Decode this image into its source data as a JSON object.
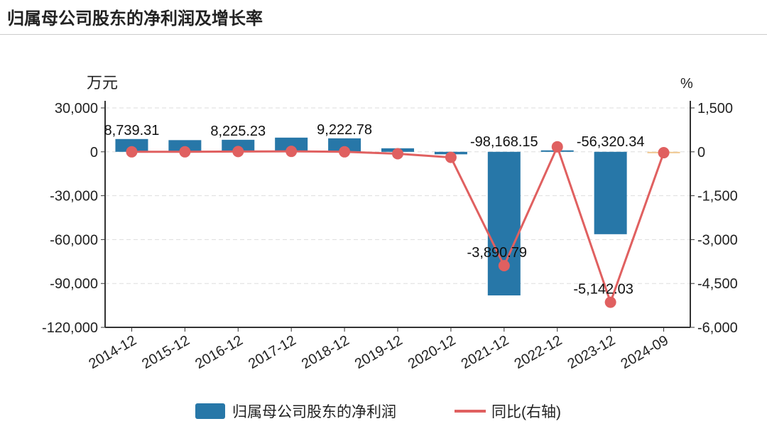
{
  "title": "归属母公司股东的净利润及增长率",
  "chart_data": {
    "type": "bar+line",
    "categories": [
      "2014-12",
      "2015-12",
      "2016-12",
      "2017-12",
      "2018-12",
      "2019-12",
      "2020-12",
      "2021-12",
      "2022-12",
      "2023-12",
      "2024-09"
    ],
    "left_unit": "万元",
    "right_unit": "%",
    "left_ylim": [
      -120000,
      30000
    ],
    "left_ticks": [
      "30,000",
      "0",
      "-30,000",
      "-60,000",
      "-90,000",
      "-120,000"
    ],
    "right_ylim": [
      -6000,
      1500
    ],
    "right_ticks": [
      "1,500",
      "0",
      "-1,500",
      "-3,000",
      "-4,500",
      "-6,000"
    ],
    "grid": true,
    "legend_position": "bottom",
    "series": [
      {
        "name": "归属母公司股东的净利润",
        "type": "bar",
        "axis": "left",
        "color": "#2777a8",
        "values": [
          8739.31,
          8000,
          8225.23,
          9700,
          9222.78,
          2400,
          -1700,
          -98168.15,
          1000,
          -56320.34,
          -300
        ],
        "labels": [
          "8,739.31",
          "",
          "8,225.23",
          "",
          "9,222.78",
          "",
          "",
          "-98,168.15",
          "",
          "-56,320.34",
          ""
        ]
      },
      {
        "name": "同比(右轴)",
        "type": "line",
        "axis": "right",
        "color": "#e06060",
        "values": [
          0,
          0,
          10,
          15,
          0,
          -65,
          -190,
          -3890.79,
          170,
          -5142.03,
          -30
        ],
        "labels": [
          "",
          "",
          "",
          "",
          "",
          "",
          "",
          "-3,890.79",
          "",
          "-5,142.03",
          ""
        ]
      }
    ]
  }
}
